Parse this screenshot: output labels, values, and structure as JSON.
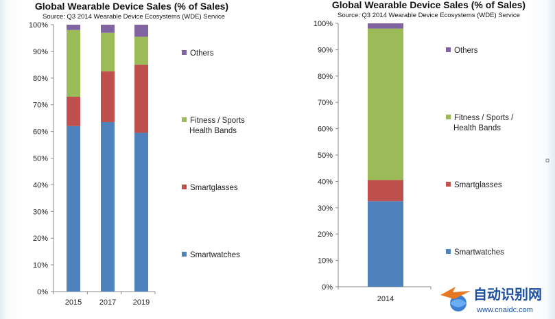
{
  "chart_data": [
    {
      "type": "bar",
      "stacked": true,
      "title": "Global Wearable Device Sales (% of Sales)",
      "subtitle": "Source: Q3 2014 Wearable Device Ecosystems (WDE) Service",
      "categories": [
        "2015",
        "2017",
        "2019"
      ],
      "ylim": [
        0,
        100
      ],
      "ytick_labels": [
        "0%",
        "10%",
        "20%",
        "30%",
        "40%",
        "50%",
        "60%",
        "70%",
        "80%",
        "90%",
        "100%"
      ],
      "grid": false,
      "legend_position": "right",
      "series": [
        {
          "name": "Smartwatches",
          "color": "#4f81bd",
          "values": [
            62,
            63.5,
            59.5
          ]
        },
        {
          "name": "Smartglasses",
          "color": "#c0504d",
          "values": [
            11,
            19,
            25.5
          ]
        },
        {
          "name": "Fitness / Sports Health Bands",
          "color": "#9bbb59",
          "values": [
            25,
            14.5,
            10.5
          ]
        },
        {
          "name": "Others",
          "color": "#8064a2",
          "values": [
            2,
            3,
            4.5
          ]
        }
      ]
    },
    {
      "type": "bar",
      "stacked": true,
      "title": "Global Wearable Device Sales (% of Sales)",
      "subtitle": "Source: Q3 2014 Wearable Device Ecosystems (WDE) Service",
      "categories": [
        "2014"
      ],
      "ylim": [
        0,
        100
      ],
      "ytick_labels": [
        "0%",
        "10%",
        "20%",
        "30%",
        "40%",
        "50%",
        "60%",
        "70%",
        "80%",
        "90%",
        "100%"
      ],
      "grid": false,
      "legend_position": "right",
      "series": [
        {
          "name": "Smartwatches",
          "color": "#4f81bd",
          "values": [
            32.5
          ]
        },
        {
          "name": "Smartglasses",
          "color": "#c0504d",
          "values": [
            8
          ]
        },
        {
          "name": "Fitness / Sports / Health Bands",
          "color": "#9bbb59",
          "values": [
            57.5
          ]
        },
        {
          "name": "Others",
          "color": "#8064a2",
          "values": [
            2
          ]
        }
      ]
    }
  ],
  "watermark": {
    "text": "自动识别网",
    "url": "www.cnaidc.com",
    "icon": "globe-arrow-logo-icon"
  }
}
